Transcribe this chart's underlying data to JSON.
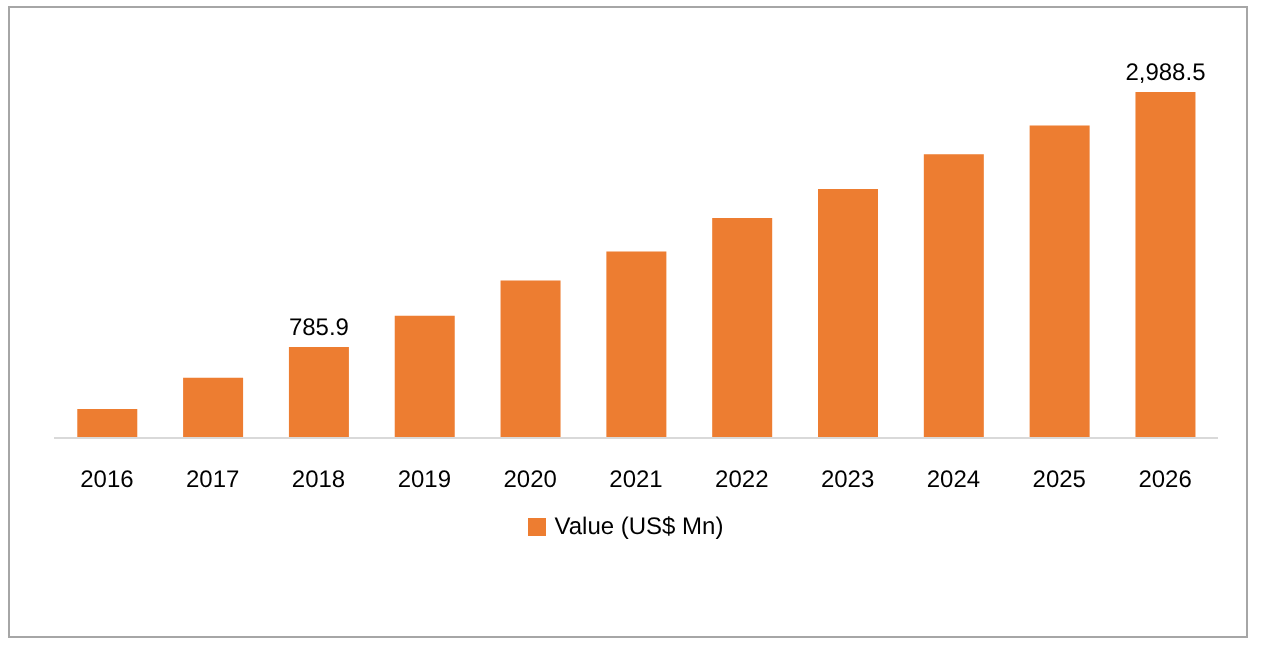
{
  "chart_data": {
    "type": "bar",
    "categories": [
      "2016",
      "2017",
      "2018",
      "2019",
      "2020",
      "2021",
      "2022",
      "2023",
      "2024",
      "2025",
      "2026"
    ],
    "series": [
      {
        "name": "Value (US$ Mn)",
        "color": "#ed7d31",
        "values": [
          250,
          520,
          785.9,
          1055,
          1360,
          1610,
          1900,
          2150,
          2450,
          2700,
          2988.5
        ],
        "value_labels": [
          null,
          null,
          "785.9",
          null,
          null,
          null,
          null,
          null,
          null,
          null,
          "2,988.5"
        ]
      }
    ],
    "legend": "bottom",
    "grid": false
  }
}
